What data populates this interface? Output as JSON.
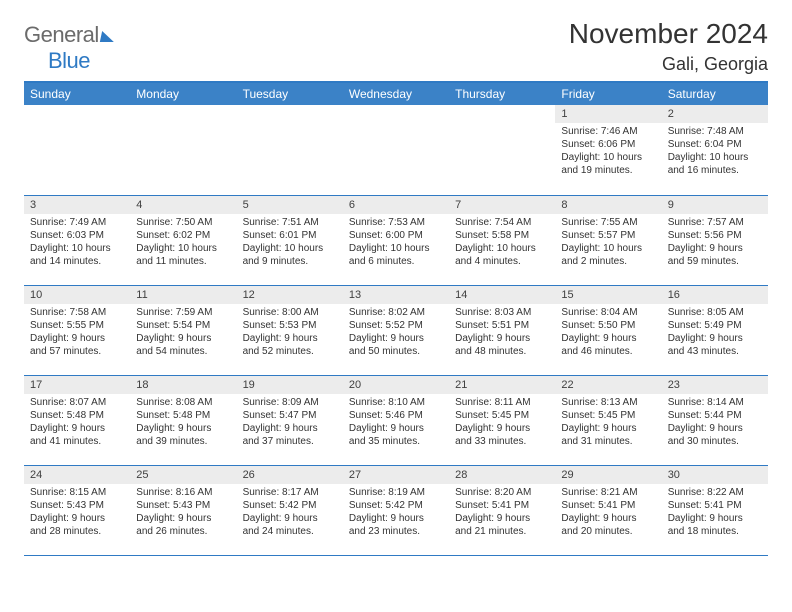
{
  "logo": {
    "word1": "General",
    "word2": "Blue"
  },
  "title": "November 2024",
  "subtitle": "Gali, Georgia",
  "colors": {
    "header_bg": "#3b82c7",
    "border": "#2f7ac4",
    "daynum_bg": "#ececec",
    "text": "#333333",
    "logo_gray": "#6b6b6b",
    "logo_blue": "#2f7ac4"
  },
  "weekdays": [
    "Sunday",
    "Monday",
    "Tuesday",
    "Wednesday",
    "Thursday",
    "Friday",
    "Saturday"
  ],
  "weeks": [
    [
      null,
      null,
      null,
      null,
      null,
      {
        "n": "1",
        "sunrise": "Sunrise: 7:46 AM",
        "sunset": "Sunset: 6:06 PM",
        "daylight": "Daylight: 10 hours and 19 minutes."
      },
      {
        "n": "2",
        "sunrise": "Sunrise: 7:48 AM",
        "sunset": "Sunset: 6:04 PM",
        "daylight": "Daylight: 10 hours and 16 minutes."
      }
    ],
    [
      {
        "n": "3",
        "sunrise": "Sunrise: 7:49 AM",
        "sunset": "Sunset: 6:03 PM",
        "daylight": "Daylight: 10 hours and 14 minutes."
      },
      {
        "n": "4",
        "sunrise": "Sunrise: 7:50 AM",
        "sunset": "Sunset: 6:02 PM",
        "daylight": "Daylight: 10 hours and 11 minutes."
      },
      {
        "n": "5",
        "sunrise": "Sunrise: 7:51 AM",
        "sunset": "Sunset: 6:01 PM",
        "daylight": "Daylight: 10 hours and 9 minutes."
      },
      {
        "n": "6",
        "sunrise": "Sunrise: 7:53 AM",
        "sunset": "Sunset: 6:00 PM",
        "daylight": "Daylight: 10 hours and 6 minutes."
      },
      {
        "n": "7",
        "sunrise": "Sunrise: 7:54 AM",
        "sunset": "Sunset: 5:58 PM",
        "daylight": "Daylight: 10 hours and 4 minutes."
      },
      {
        "n": "8",
        "sunrise": "Sunrise: 7:55 AM",
        "sunset": "Sunset: 5:57 PM",
        "daylight": "Daylight: 10 hours and 2 minutes."
      },
      {
        "n": "9",
        "sunrise": "Sunrise: 7:57 AM",
        "sunset": "Sunset: 5:56 PM",
        "daylight": "Daylight: 9 hours and 59 minutes."
      }
    ],
    [
      {
        "n": "10",
        "sunrise": "Sunrise: 7:58 AM",
        "sunset": "Sunset: 5:55 PM",
        "daylight": "Daylight: 9 hours and 57 minutes."
      },
      {
        "n": "11",
        "sunrise": "Sunrise: 7:59 AM",
        "sunset": "Sunset: 5:54 PM",
        "daylight": "Daylight: 9 hours and 54 minutes."
      },
      {
        "n": "12",
        "sunrise": "Sunrise: 8:00 AM",
        "sunset": "Sunset: 5:53 PM",
        "daylight": "Daylight: 9 hours and 52 minutes."
      },
      {
        "n": "13",
        "sunrise": "Sunrise: 8:02 AM",
        "sunset": "Sunset: 5:52 PM",
        "daylight": "Daylight: 9 hours and 50 minutes."
      },
      {
        "n": "14",
        "sunrise": "Sunrise: 8:03 AM",
        "sunset": "Sunset: 5:51 PM",
        "daylight": "Daylight: 9 hours and 48 minutes."
      },
      {
        "n": "15",
        "sunrise": "Sunrise: 8:04 AM",
        "sunset": "Sunset: 5:50 PM",
        "daylight": "Daylight: 9 hours and 46 minutes."
      },
      {
        "n": "16",
        "sunrise": "Sunrise: 8:05 AM",
        "sunset": "Sunset: 5:49 PM",
        "daylight": "Daylight: 9 hours and 43 minutes."
      }
    ],
    [
      {
        "n": "17",
        "sunrise": "Sunrise: 8:07 AM",
        "sunset": "Sunset: 5:48 PM",
        "daylight": "Daylight: 9 hours and 41 minutes."
      },
      {
        "n": "18",
        "sunrise": "Sunrise: 8:08 AM",
        "sunset": "Sunset: 5:48 PM",
        "daylight": "Daylight: 9 hours and 39 minutes."
      },
      {
        "n": "19",
        "sunrise": "Sunrise: 8:09 AM",
        "sunset": "Sunset: 5:47 PM",
        "daylight": "Daylight: 9 hours and 37 minutes."
      },
      {
        "n": "20",
        "sunrise": "Sunrise: 8:10 AM",
        "sunset": "Sunset: 5:46 PM",
        "daylight": "Daylight: 9 hours and 35 minutes."
      },
      {
        "n": "21",
        "sunrise": "Sunrise: 8:11 AM",
        "sunset": "Sunset: 5:45 PM",
        "daylight": "Daylight: 9 hours and 33 minutes."
      },
      {
        "n": "22",
        "sunrise": "Sunrise: 8:13 AM",
        "sunset": "Sunset: 5:45 PM",
        "daylight": "Daylight: 9 hours and 31 minutes."
      },
      {
        "n": "23",
        "sunrise": "Sunrise: 8:14 AM",
        "sunset": "Sunset: 5:44 PM",
        "daylight": "Daylight: 9 hours and 30 minutes."
      }
    ],
    [
      {
        "n": "24",
        "sunrise": "Sunrise: 8:15 AM",
        "sunset": "Sunset: 5:43 PM",
        "daylight": "Daylight: 9 hours and 28 minutes."
      },
      {
        "n": "25",
        "sunrise": "Sunrise: 8:16 AM",
        "sunset": "Sunset: 5:43 PM",
        "daylight": "Daylight: 9 hours and 26 minutes."
      },
      {
        "n": "26",
        "sunrise": "Sunrise: 8:17 AM",
        "sunset": "Sunset: 5:42 PM",
        "daylight": "Daylight: 9 hours and 24 minutes."
      },
      {
        "n": "27",
        "sunrise": "Sunrise: 8:19 AM",
        "sunset": "Sunset: 5:42 PM",
        "daylight": "Daylight: 9 hours and 23 minutes."
      },
      {
        "n": "28",
        "sunrise": "Sunrise: 8:20 AM",
        "sunset": "Sunset: 5:41 PM",
        "daylight": "Daylight: 9 hours and 21 minutes."
      },
      {
        "n": "29",
        "sunrise": "Sunrise: 8:21 AM",
        "sunset": "Sunset: 5:41 PM",
        "daylight": "Daylight: 9 hours and 20 minutes."
      },
      {
        "n": "30",
        "sunrise": "Sunrise: 8:22 AM",
        "sunset": "Sunset: 5:41 PM",
        "daylight": "Daylight: 9 hours and 18 minutes."
      }
    ]
  ]
}
